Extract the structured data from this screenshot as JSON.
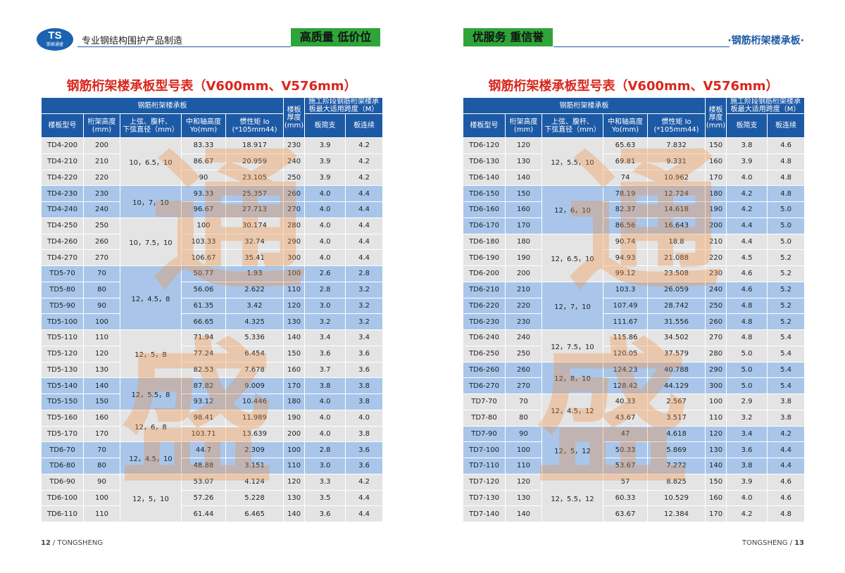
{
  "header": {
    "logo": "TS",
    "logo_sub": "邯郸通盛",
    "tagline": "专业钢结构围护产品制造",
    "right_title": "·钢筋桁架楼承板·"
  },
  "pages": [
    {
      "slogan": "高质量  低价位",
      "watermark": [
        "通",
        "盛"
      ],
      "table": {
        "title": "钢筋桁架楼承板型号表（V600mm、V576mm）",
        "header": {
          "group": "钢筋桁架楼承板",
          "thickness": "楼板\n厚度\n(mm)",
          "span": "施工阶段钢筋桁架楼承\n板最大适用跨度（M）",
          "model": "楼板型号",
          "height": "桁架高度\n(mm)",
          "diameter": "上弦、腹杆、\n下弦直径（mm）",
          "yo": "中和轴高度\nYo(mm)",
          "io": "惯性矩 Io\n(*105mm44)",
          "simple": "板简支",
          "continuous": "板连续"
        },
        "groups": [
          {
            "diameter": "10，6.5，10",
            "shade": "gray",
            "rows": [
              [
                "TD4-200",
                "200",
                "83.33",
                "18.917",
                "230",
                "3.9",
                "4.2"
              ],
              [
                "TD4-210",
                "210",
                "86.67",
                "20.959",
                "240",
                "3.9",
                "4.2"
              ],
              [
                "TD4-220",
                "220",
                "90",
                "23.105",
                "250",
                "3.9",
                "4.2"
              ]
            ]
          },
          {
            "diameter": "10，7，10",
            "shade": "blue",
            "rows": [
              [
                "TD4-230",
                "230",
                "93.33",
                "25.357",
                "260",
                "4.0",
                "4.4"
              ],
              [
                "TD4-240",
                "240",
                "96.67",
                "27.713",
                "270",
                "4.0",
                "4.4"
              ]
            ]
          },
          {
            "diameter": "10，7.5，10",
            "shade": "gray",
            "rows": [
              [
                "TD4-250",
                "250",
                "100",
                "30.174",
                "280",
                "4.0",
                "4.4"
              ],
              [
                "TD4-260",
                "260",
                "103.33",
                "32.74",
                "290",
                "4.0",
                "4.4"
              ],
              [
                "TD4-270",
                "270",
                "106.67",
                "35.41",
                "300",
                "4.0",
                "4.4"
              ]
            ]
          },
          {
            "diameter": "12，4.5，8",
            "shade": "blue",
            "rows": [
              [
                "TD5-70",
                "70",
                "50.77",
                "1.93",
                "100",
                "2.6",
                "2.8"
              ],
              [
                "TD5-80",
                "80",
                "56.06",
                "2.622",
                "110",
                "2.8",
                "3.2"
              ],
              [
                "TD5-90",
                "90",
                "61.35",
                "3.42",
                "120",
                "3.0",
                "3.2"
              ],
              [
                "TD5-100",
                "100",
                "66.65",
                "4.325",
                "130",
                "3.2",
                "3.2"
              ]
            ]
          },
          {
            "diameter": "12，5，8",
            "shade": "gray",
            "rows": [
              [
                "TD5-110",
                "110",
                "71.94",
                "5.336",
                "140",
                "3.4",
                "3.4"
              ],
              [
                "TD5-120",
                "120",
                "77.24",
                "6.454",
                "150",
                "3.6",
                "3.6"
              ],
              [
                "TD5-130",
                "130",
                "82.53",
                "7.678",
                "160",
                "3.7",
                "3.6"
              ]
            ]
          },
          {
            "diameter": "12，5.5，8",
            "shade": "blue",
            "rows": [
              [
                "TD5-140",
                "140",
                "87.82",
                "9.009",
                "170",
                "3.8",
                "3.8"
              ],
              [
                "TD5-150",
                "150",
                "93.12",
                "10.446",
                "180",
                "4.0",
                "3.8"
              ]
            ]
          },
          {
            "diameter": "12，6，8",
            "shade": "gray",
            "rows": [
              [
                "TD5-160",
                "160",
                "98.41",
                "11.989",
                "190",
                "4.0",
                "4.0"
              ],
              [
                "TD5-170",
                "170",
                "103.71",
                "13.639",
                "200",
                "4.0",
                "3.8"
              ]
            ]
          },
          {
            "diameter": "12，4.5，10",
            "shade": "blue",
            "rows": [
              [
                "TD6-70",
                "70",
                "44.7",
                "2.309",
                "100",
                "2.8",
                "3.6"
              ],
              [
                "TD6-80",
                "80",
                "48.88",
                "3.151",
                "110",
                "3.0",
                "3.6"
              ]
            ]
          },
          {
            "diameter": "12，5，10",
            "shade": "gray",
            "rows": [
              [
                "TD6-90",
                "90",
                "53.07",
                "4.124",
                "120",
                "3.3",
                "4.2"
              ],
              [
                "TD6-100",
                "100",
                "57.26",
                "5.228",
                "130",
                "3.5",
                "4.4"
              ],
              [
                "TD6-110",
                "110",
                "61.44",
                "6.465",
                "140",
                "3.6",
                "4.4"
              ]
            ]
          }
        ]
      },
      "footer": [
        "12",
        "/ TONGSHENG"
      ]
    },
    {
      "slogan": "优服务  重信誉",
      "watermark": [
        "通",
        "盛"
      ],
      "table": {
        "title": "钢筋桁架楼承板型号表（V600mm、V576mm）",
        "header": {
          "group": "钢筋桁架楼承板",
          "thickness": "楼板\n厚度\n(mm)",
          "span": "施工阶段钢筋桁架楼承\n板最大适用跨度（M）",
          "model": "楼板型号",
          "height": "桁架高度\n(mm)",
          "diameter": "上弦、腹杆、\n下弦直径（mm）",
          "yo": "中和轴高度\nYo(mm)",
          "io": "惯性矩 Io\n(*105mm44)",
          "simple": "板简支",
          "continuous": "板连续"
        },
        "groups": [
          {
            "diameter": "12，5.5，10",
            "shade": "gray",
            "rows": [
              [
                "TD6-120",
                "120",
                "65.63",
                "7.832",
                "150",
                "3.8",
                "4.6"
              ],
              [
                "TD6-130",
                "130",
                "69.81",
                "9.331",
                "160",
                "3.9",
                "4.8"
              ],
              [
                "TD6-140",
                "140",
                "74",
                "10.962",
                "170",
                "4.0",
                "4.8"
              ]
            ]
          },
          {
            "diameter": "12，6，10",
            "shade": "blue",
            "rows": [
              [
                "TD6-150",
                "150",
                "78.19",
                "12.724",
                "180",
                "4.2",
                "4.8"
              ],
              [
                "TD6-160",
                "160",
                "82.37",
                "14.618",
                "190",
                "4.2",
                "5.0"
              ],
              [
                "TD6-170",
                "170",
                "86.56",
                "16.643",
                "200",
                "4.4",
                "5.0"
              ]
            ]
          },
          {
            "diameter": "12，6.5，10",
            "shade": "gray",
            "rows": [
              [
                "TD6-180",
                "180",
                "90.74",
                "18.8",
                "210",
                "4.4",
                "5.0"
              ],
              [
                "TD6-190",
                "190",
                "94.93",
                "21.088",
                "220",
                "4.5",
                "5.2"
              ],
              [
                "TD6-200",
                "200",
                "99.12",
                "23.508",
                "230",
                "4.6",
                "5.2"
              ]
            ]
          },
          {
            "diameter": "12，7，10",
            "shade": "blue",
            "rows": [
              [
                "TD6-210",
                "210",
                "103.3",
                "26.059",
                "240",
                "4.6",
                "5.2"
              ],
              [
                "TD6-220",
                "220",
                "107.49",
                "28.742",
                "250",
                "4.8",
                "5.2"
              ],
              [
                "TD6-230",
                "230",
                "111.67",
                "31.556",
                "260",
                "4.8",
                "5.2"
              ]
            ]
          },
          {
            "diameter": "12，7.5，10",
            "shade": "gray",
            "rows": [
              [
                "TD6-240",
                "240",
                "115.86",
                "34.502",
                "270",
                "4.8",
                "5.4"
              ],
              [
                "TD6-250",
                "250",
                "120.05",
                "37.579",
                "280",
                "5.0",
                "5.4"
              ]
            ]
          },
          {
            "diameter": "12，8，10",
            "shade": "blue",
            "rows": [
              [
                "TD6-260",
                "260",
                "124.23",
                "40.788",
                "290",
                "5.0",
                "5.4"
              ],
              [
                "TD6-270",
                "270",
                "128.42",
                "44.129",
                "300",
                "5.0",
                "5.4"
              ]
            ]
          },
          {
            "diameter": "12，4.5，12",
            "shade": "gray",
            "rows": [
              [
                "TD7-70",
                "70",
                "40.33",
                "2.567",
                "100",
                "2.9",
                "3.8"
              ],
              [
                "TD7-80",
                "80",
                "43.67",
                "3.517",
                "110",
                "3.2",
                "3.8"
              ]
            ]
          },
          {
            "diameter": "12，5，12",
            "shade": "blue",
            "rows": [
              [
                "TD7-90",
                "90",
                "47",
                "4.618",
                "120",
                "3.4",
                "4.2"
              ],
              [
                "TD7-100",
                "100",
                "50.33",
                "5.869",
                "130",
                "3.6",
                "4.4"
              ],
              [
                "TD7-110",
                "110",
                "53.67",
                "7.272",
                "140",
                "3.8",
                "4.4"
              ]
            ]
          },
          {
            "diameter": "12，5.5，12",
            "shade": "gray",
            "rows": [
              [
                "TD7-120",
                "120",
                "57",
                "8.825",
                "150",
                "3.9",
                "4.6"
              ],
              [
                "TD7-130",
                "130",
                "60.33",
                "10.529",
                "160",
                "4.0",
                "4.6"
              ],
              [
                "TD7-140",
                "140",
                "63.67",
                "12.384",
                "170",
                "4.2",
                "4.8"
              ]
            ]
          }
        ]
      },
      "footer": [
        "TONGSHENG /",
        "13"
      ]
    }
  ]
}
